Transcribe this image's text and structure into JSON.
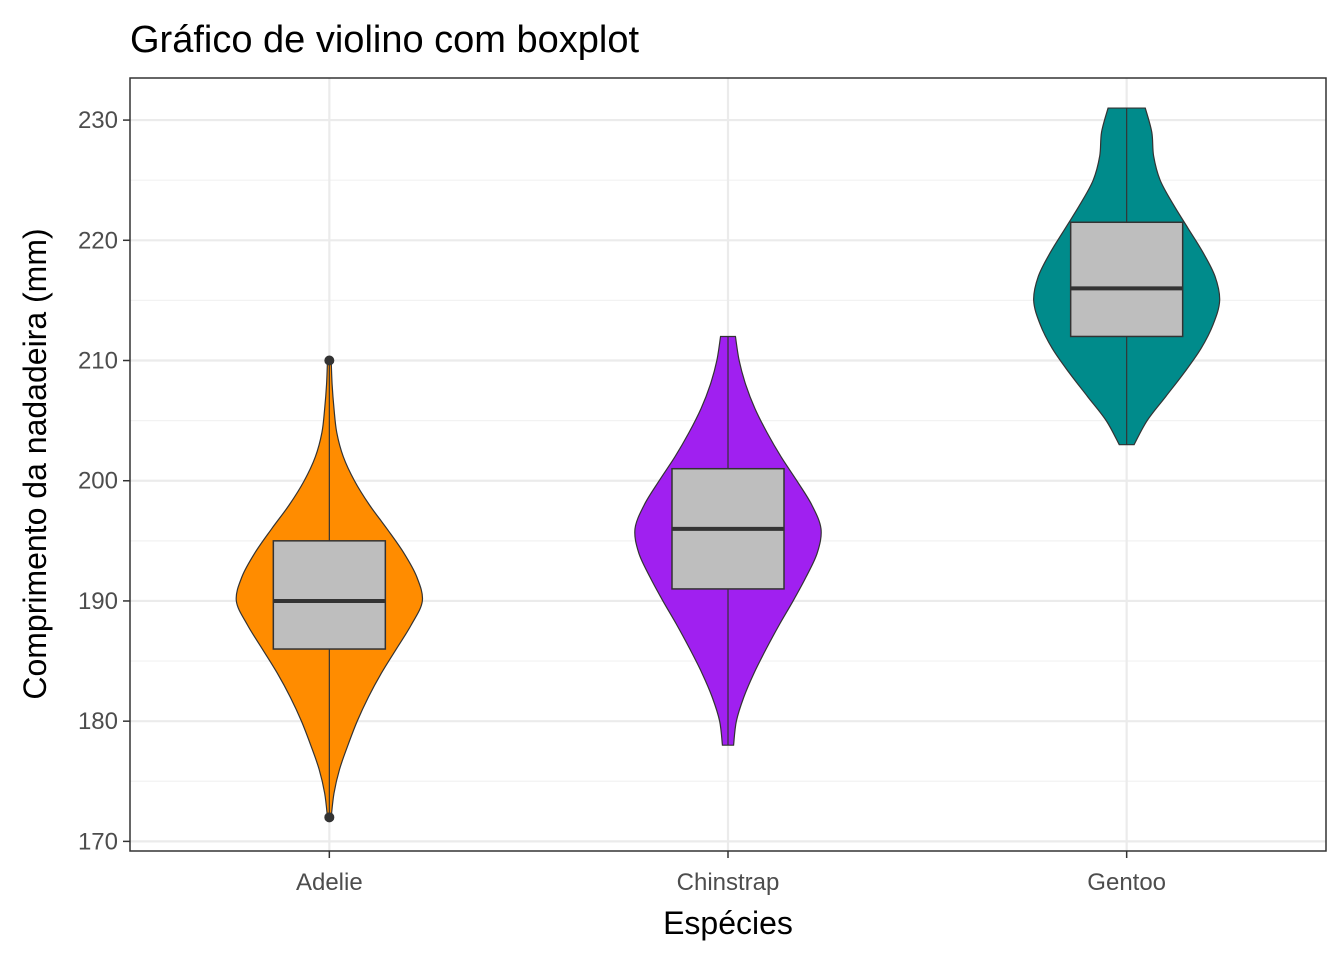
{
  "chart_data": {
    "type": "violin",
    "title": "Gráfico de violino com boxplot",
    "xlabel": "Espécies",
    "ylabel": "Comprimento da nadadeira (mm)",
    "categories": [
      "Adelie",
      "Chinstrap",
      "Gentoo"
    ],
    "ylim": [
      169.2,
      233.5
    ],
    "yticks": [
      170,
      180,
      190,
      200,
      210,
      220,
      230
    ],
    "grid": true,
    "legend": "none",
    "series": [
      {
        "category": "Adelie",
        "color": "#FF8C00",
        "box": {
          "min": 172,
          "q1": 186,
          "median": 190,
          "q3": 195,
          "max": 210
        },
        "outliers": [
          172,
          210
        ],
        "density": [
          [
            172,
            0.02
          ],
          [
            174,
            0.05
          ],
          [
            176,
            0.11
          ],
          [
            178,
            0.2
          ],
          [
            180,
            0.3
          ],
          [
            182,
            0.42
          ],
          [
            184,
            0.56
          ],
          [
            186,
            0.72
          ],
          [
            188,
            0.88
          ],
          [
            190,
            1.0
          ],
          [
            192,
            0.94
          ],
          [
            194,
            0.8
          ],
          [
            196,
            0.62
          ],
          [
            198,
            0.43
          ],
          [
            200,
            0.27
          ],
          [
            202,
            0.15
          ],
          [
            204,
            0.08
          ],
          [
            206,
            0.05
          ],
          [
            208,
            0.03
          ],
          [
            210,
            0.02
          ]
        ]
      },
      {
        "category": "Chinstrap",
        "color": "#A020F0",
        "box": {
          "min": 178,
          "q1": 191,
          "median": 196,
          "q3": 201,
          "max": 212
        },
        "outliers": [],
        "density": [
          [
            178,
            0.06
          ],
          [
            180,
            0.09
          ],
          [
            182,
            0.17
          ],
          [
            184,
            0.28
          ],
          [
            186,
            0.41
          ],
          [
            188,
            0.55
          ],
          [
            190,
            0.7
          ],
          [
            192,
            0.84
          ],
          [
            194,
            0.96
          ],
          [
            196,
            1.0
          ],
          [
            198,
            0.9
          ],
          [
            200,
            0.74
          ],
          [
            202,
            0.57
          ],
          [
            204,
            0.42
          ],
          [
            206,
            0.29
          ],
          [
            208,
            0.19
          ],
          [
            210,
            0.12
          ],
          [
            212,
            0.08
          ]
        ]
      },
      {
        "category": "Gentoo",
        "color": "#008B8B",
        "box": {
          "min": 203,
          "q1": 212,
          "median": 216,
          "q3": 221.5,
          "max": 231
        },
        "outliers": [],
        "density": [
          [
            203,
            0.08
          ],
          [
            205,
            0.22
          ],
          [
            207,
            0.42
          ],
          [
            209,
            0.62
          ],
          [
            211,
            0.8
          ],
          [
            213,
            0.93
          ],
          [
            215,
            1.0
          ],
          [
            217,
            0.95
          ],
          [
            219,
            0.82
          ],
          [
            221,
            0.66
          ],
          [
            223,
            0.5
          ],
          [
            225,
            0.36
          ],
          [
            227,
            0.29
          ],
          [
            229,
            0.27
          ],
          [
            231,
            0.2
          ]
        ]
      }
    ]
  }
}
